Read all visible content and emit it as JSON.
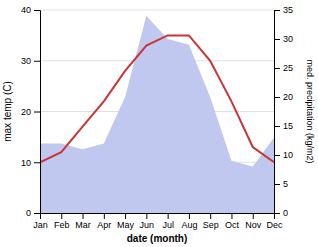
{
  "chart_data": {
    "type": "line",
    "xlabel": "date (month)",
    "ylabel": "max temp (C)",
    "y2label": "med. precipitation (kg/m2)",
    "categories": [
      "Jan",
      "Feb",
      "Mar",
      "Apr",
      "May",
      "Jun",
      "Jul",
      "Aug",
      "Sep",
      "Oct",
      "Nov",
      "Dec"
    ],
    "series": [
      {
        "type": "area",
        "axis": "y2",
        "color": "#c0c8f0",
        "values": [
          12,
          12,
          11,
          12,
          20,
          34,
          30,
          29,
          20,
          9,
          8,
          13
        ]
      },
      {
        "type": "line",
        "color": "#cc3333",
        "values": [
          10,
          12,
          17,
          22,
          28,
          33,
          35,
          35,
          30,
          22,
          13,
          10
        ]
      }
    ],
    "ylim": [
      0,
      40
    ],
    "yticks": [
      0,
      10,
      20,
      30,
      40
    ],
    "y2lim": [
      0,
      35
    ],
    "y2ticks": [
      0,
      5,
      10,
      15,
      20,
      25,
      30,
      35
    ],
    "grid": true
  }
}
